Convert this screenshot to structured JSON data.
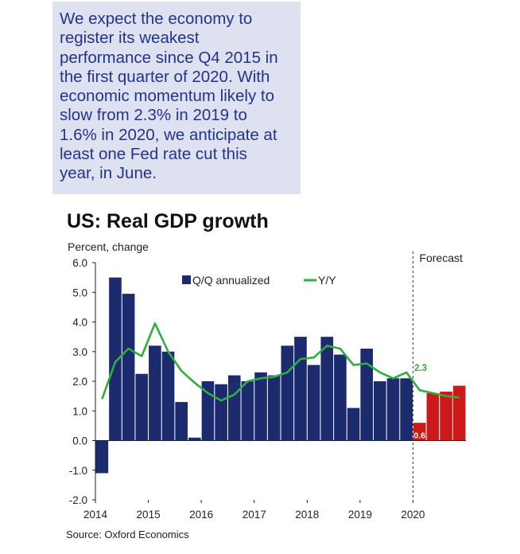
{
  "note": {
    "text": "We expect the economy to\nregister its weakest\nperformance since Q4 2015 in\nthe first quarter of 2020. With\neconomic momentum likely to\nslow from 2.3% in 2019 to\n1.6% in 2020, we anticipate at\nleast one Fed rate cut this\nyear, in June."
  },
  "chart_data": {
    "type": "bar",
    "title": "US: Real GDP growth",
    "ylabel": "Percent, change",
    "ylim": [
      -2.0,
      6.0
    ],
    "yticks": [
      "6.0",
      "5.0",
      "4.0",
      "3.0",
      "2.0",
      "1.0",
      "0.0",
      "-1.0",
      "-2.0"
    ],
    "x_year_labels": [
      "2014",
      "2015",
      "2016",
      "2017",
      "2018",
      "2019",
      "2020"
    ],
    "categories": [
      "2014 Q1",
      "2014 Q2",
      "2014 Q3",
      "2014 Q4",
      "2015 Q1",
      "2015 Q2",
      "2015 Q3",
      "2015 Q4",
      "2016 Q1",
      "2016 Q2",
      "2016 Q3",
      "2016 Q4",
      "2017 Q1",
      "2017 Q2",
      "2017 Q3",
      "2017 Q4",
      "2018 Q1",
      "2018 Q2",
      "2018 Q3",
      "2018 Q4",
      "2019 Q1",
      "2019 Q2",
      "2019 Q3",
      "2019 Q4",
      "2020 Q1",
      "2020 Q2",
      "2020 Q3",
      "2020 Q4"
    ],
    "series": [
      {
        "name": "Q/Q annualized",
        "kind": "bar",
        "color": "#1c2a6e",
        "forecast_color": "#cc1a1a",
        "forecast_start_index": 24,
        "values": [
          -1.1,
          5.5,
          4.95,
          2.25,
          3.2,
          3.0,
          1.3,
          0.1,
          2.0,
          1.9,
          2.2,
          2.0,
          2.3,
          2.2,
          3.2,
          3.5,
          2.55,
          3.5,
          2.9,
          1.1,
          3.1,
          2.0,
          2.1,
          2.1,
          0.6,
          1.6,
          1.65,
          1.85
        ]
      },
      {
        "name": "Y/Y",
        "kind": "line",
        "color": "#2eaf3e",
        "values": [
          1.4,
          2.65,
          3.1,
          2.85,
          3.95,
          3.0,
          2.35,
          1.95,
          1.6,
          1.35,
          1.55,
          2.0,
          2.1,
          2.15,
          2.3,
          2.75,
          2.8,
          3.2,
          3.1,
          2.55,
          2.6,
          2.3,
          2.1,
          2.3,
          1.7,
          1.6,
          1.5,
          1.45
        ]
      }
    ],
    "data_labels": [
      {
        "text": "2.3",
        "style": "green"
      },
      {
        "text": "0.6",
        "style": "white"
      }
    ],
    "forecast_label": "Forecast",
    "legend_position": "top-center",
    "grid": false,
    "source": "Source: Oxford Economics"
  }
}
